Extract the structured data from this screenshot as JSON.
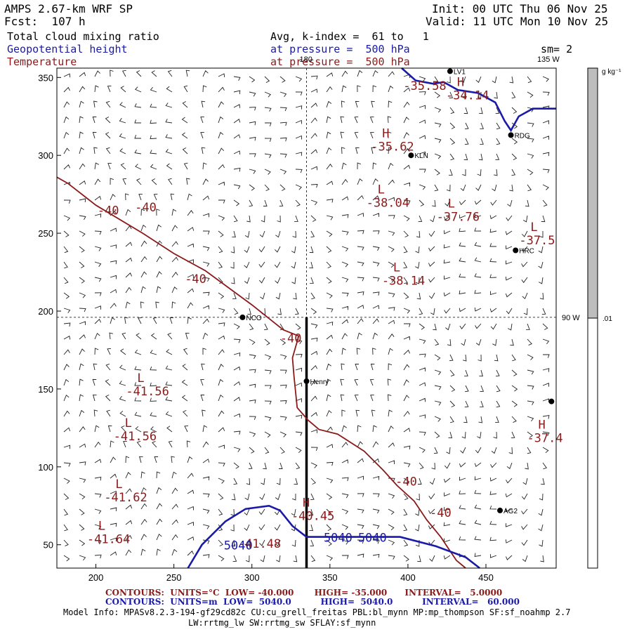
{
  "header": {
    "model": "AMPS 2.67-km WRF SP",
    "fcst": "Fcst:  107 h",
    "init": "Init: 00 UTC Thu 06 Nov 25",
    "valid": "Valid: 11 UTC Mon 10 Nov 25",
    "field1": "Total cloud mixing ratio",
    "field2": "Geopotential height",
    "field3": "Temperature",
    "avg": "Avg, k-index =  61 to   1",
    "pres1": "at pressure =  500 hPa",
    "pres2": "at pressure =  500 hPa",
    "sm": "sm= 2"
  },
  "colors": {
    "temperature": "#8b1a1a",
    "height": "#1a1aa8",
    "colorbar_fill": "#bdbdbd"
  },
  "chart_data": {
    "type": "contour",
    "x_ticks": [
      200,
      250,
      300,
      350,
      400,
      450
    ],
    "y_ticks": [
      50,
      100,
      150,
      200,
      250,
      300,
      350
    ],
    "xlim": [
      175,
      495
    ],
    "ylim": [
      35,
      356
    ],
    "grid_lines": {
      "lon_labels": [
        "180",
        "135 W",
        "90 W"
      ],
      "vertical_x": 335,
      "horizontal_y": 196
    },
    "cross_section_line": {
      "x": 335,
      "y_from": 196,
      "y_to": 35
    },
    "colorbar": {
      "unit": "g kg⁻¹",
      "label": ".01",
      "label_value": 0.01
    },
    "stations": [
      {
        "name": "NCO",
        "x": 294,
        "y": 196
      },
      {
        "name": "Henry",
        "x": 335,
        "y": 155
      },
      {
        "name": "KLN",
        "x": 402,
        "y": 300
      },
      {
        "name": "RDG",
        "x": 466,
        "y": 313
      },
      {
        "name": "HRC",
        "x": 469,
        "y": 239
      },
      {
        "name": "AG2",
        "x": 459,
        "y": 72
      },
      {
        "name": "LV1",
        "x": 427,
        "y": 354
      },
      {
        "name": "",
        "x": 492,
        "y": 142
      }
    ],
    "temperature_extrema": [
      {
        "type": "L",
        "value": "-41.56",
        "x": 222,
        "y": 150
      },
      {
        "type": "L",
        "value": "-41.56",
        "x": 214,
        "y": 121
      },
      {
        "type": "L",
        "value": "-41.62",
        "x": 208,
        "y": 82
      },
      {
        "type": "L",
        "value": "-41.64",
        "x": 197,
        "y": 55
      },
      {
        "type": "L",
        "value": "-38.04",
        "x": 376,
        "y": 271
      },
      {
        "type": "L",
        "value": "-37.76",
        "x": 421,
        "y": 262
      },
      {
        "type": "L",
        "value": "-37.5",
        "x": 474,
        "y": 247
      },
      {
        "type": "L",
        "value": "-38.14",
        "x": 386,
        "y": 221
      },
      {
        "type": "H",
        "value": "-35.62",
        "x": 379,
        "y": 307
      },
      {
        "type": "H",
        "value": "-34.14",
        "x": 427,
        "y": 340
      },
      {
        "type": "H",
        "value": "-37.4",
        "x": 479,
        "y": 120
      },
      {
        "type": "H",
        "value": "-40.45",
        "x": 328,
        "y": 70
      }
    ],
    "temperature_contour_labels": [
      {
        "value": "-40",
        "x": 201,
        "y": 262
      },
      {
        "value": "-40",
        "x": 225,
        "y": 264
      },
      {
        "value": "-40",
        "x": 257,
        "y": 218
      },
      {
        "value": "-40",
        "x": 318,
        "y": 180
      },
      {
        "value": "-40",
        "x": 392,
        "y": 88
      },
      {
        "value": "-40",
        "x": 414,
        "y": 68
      }
    ],
    "partial_labels": [
      {
        "value": "-35.58",
        "x": 397,
        "y": 342
      },
      {
        "value": "-41.48",
        "x": 291,
        "y": 48
      }
    ],
    "height_contour_labels": [
      {
        "value": "5040",
        "x": 282,
        "y": 47
      },
      {
        "value": "5040",
        "x": 346,
        "y": 52
      },
      {
        "value": "5040",
        "x": 368,
        "y": 52
      }
    ],
    "temperature_contour": {
      "level": -40,
      "points": [
        [
          175,
          286
        ],
        [
          182,
          282
        ],
        [
          200,
          268
        ],
        [
          230,
          250
        ],
        [
          250,
          237
        ],
        [
          270,
          226
        ],
        [
          300,
          204
        ],
        [
          320,
          188
        ],
        [
          330,
          184
        ],
        [
          326,
          170
        ],
        [
          327,
          158
        ],
        [
          329,
          138
        ],
        [
          336,
          130
        ],
        [
          343,
          124
        ],
        [
          355,
          121
        ],
        [
          372,
          110
        ],
        [
          384,
          98
        ],
        [
          393,
          88
        ],
        [
          404,
          78
        ],
        [
          412,
          66
        ],
        [
          421,
          55
        ],
        [
          431,
          40
        ],
        [
          437,
          35
        ]
      ]
    },
    "height_contours": [
      {
        "level": 5040,
        "points": [
          [
            259,
            35
          ],
          [
            268,
            50
          ],
          [
            283,
            65
          ],
          [
            296,
            73
          ],
          [
            311,
            75
          ],
          [
            318,
            72
          ],
          [
            326,
            62
          ],
          [
            335,
            55
          ],
          [
            380,
            55
          ],
          [
            395,
            55
          ],
          [
            418,
            49
          ],
          [
            437,
            42
          ],
          [
            446,
            35
          ]
        ]
      },
      {
        "level": 5040,
        "points": [
          [
            396,
            356
          ],
          [
            405,
            348
          ],
          [
            416,
            346
          ],
          [
            423,
            347
          ],
          [
            432,
            342
          ],
          [
            445,
            340
          ],
          [
            456,
            334
          ],
          [
            462,
            322
          ],
          [
            466,
            316
          ],
          [
            471,
            325
          ],
          [
            480,
            330
          ],
          [
            495,
            330
          ]
        ]
      }
    ]
  },
  "footer": {
    "contours_red": "CONTOURS:  UNITS=°C  LOW= -40.000       HIGH= -35.000      INTERVAL=   5.0000",
    "contours_blue": "CONTOURS:  UNITS=m  LOW=  5040.0          HIGH=  5040.0          INTERVAL=   60.000",
    "model_info": "Model Info: MPASv8.2.3-194-gf29cd82c CU:cu_grell_freitas PBL:bl_mynn MP:mp_thompson SF:sf_noahmp 2.7",
    "model_info2": "LW:rrtmg_lw SW:rrtmg_sw SFLAY:sf_mynn"
  }
}
